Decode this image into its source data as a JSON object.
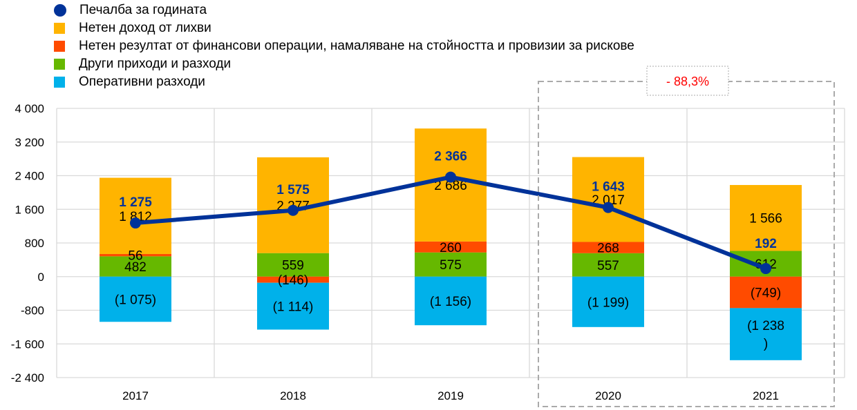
{
  "chart_data": {
    "type": "bar",
    "stacked": true,
    "categories": [
      "2017",
      "2018",
      "2019",
      "2020",
      "2021"
    ],
    "ylim": [
      -2400,
      4000
    ],
    "yticks": [
      -2400,
      -1600,
      -800,
      0,
      800,
      1600,
      2400,
      3200,
      4000
    ],
    "ytick_labels": [
      "-2 400",
      "-1 600",
      "-800",
      "0",
      "800",
      "1 600",
      "2 400",
      "3 200",
      "4 000"
    ],
    "grid": true,
    "legend_placement": "top-left",
    "series": [
      {
        "name": "Други приходи и разходи",
        "color": "#66b800",
        "values": [
          482,
          559,
          575,
          557,
          612
        ],
        "labels": [
          "482",
          "559",
          "575",
          "557",
          "612"
        ]
      },
      {
        "name": "Нетен резултат от финансови операции, намаляване на стойността и провизии за рискове",
        "color": "#ff4b00",
        "values": [
          56,
          -146,
          260,
          268,
          -749
        ],
        "labels": [
          "56",
          "(146)",
          "260",
          "268",
          "(749)"
        ]
      },
      {
        "name": "Нетен доход от лихви",
        "color": "#ffb400",
        "values": [
          1812,
          2277,
          2686,
          2017,
          1566
        ],
        "labels": [
          "1 812",
          "2 277",
          "2 686",
          "2 017",
          "1 566"
        ]
      },
      {
        "name": "Оперативни разходи",
        "color": "#00b1ea",
        "values": [
          -1075,
          -1114,
          -1156,
          -1199,
          -1238
        ],
        "labels": [
          "(1 075)",
          "(1 114)",
          "(1 156)",
          "(1 199)",
          "(1 238\n)"
        ]
      }
    ],
    "line": {
      "name": "Печалба за годината",
      "color": "#003299",
      "values": [
        1275,
        1575,
        2366,
        1643,
        192
      ],
      "labels": [
        "1 275",
        "1 575",
        "2 366",
        "1 643",
        "192"
      ]
    },
    "legend_order": [
      "Печалба за годината",
      "Нетен доход от лихви",
      "Нетен резултат от финансови операции, намаляване на стойността и провизии за рискове",
      "Други приходи и разходи",
      "Оперативни разходи"
    ],
    "annotation": {
      "text": "- 88,3%",
      "color": "#ff0000",
      "spans": [
        "2020",
        "2021"
      ]
    }
  }
}
